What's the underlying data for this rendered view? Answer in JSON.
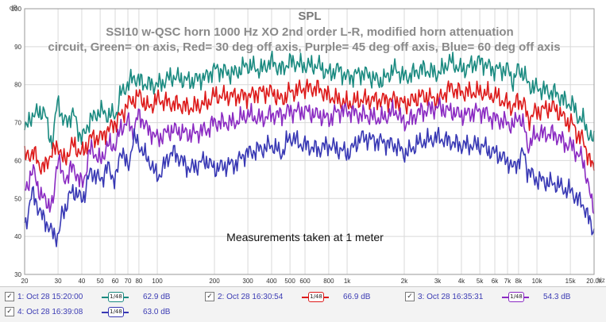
{
  "chart_data": {
    "type": "line",
    "title": "SPL",
    "subtitle_lines": [
      "SSI10 w-QSC horn 1000 Hz XO 2nd order L-R, modified horn attenuation",
      "circuit, Green= on axis, Red= 30 deg off axis, Purple= 45 deg off axis, Blue= 60 deg off axis"
    ],
    "ylabel": "dB",
    "xlabel": "Hz",
    "x_scale": "log",
    "xlim": [
      20,
      20000
    ],
    "ylim": [
      30,
      100
    ],
    "y_ticks": [
      30,
      40,
      50,
      60,
      70,
      80,
      90,
      100
    ],
    "x_ticks": [
      {
        "v": 20,
        "label": "20"
      },
      {
        "v": 30,
        "label": "30"
      },
      {
        "v": 40,
        "label": "40"
      },
      {
        "v": 50,
        "label": "50"
      },
      {
        "v": 60,
        "label": "60"
      },
      {
        "v": 70,
        "label": "70"
      },
      {
        "v": 80,
        "label": "80"
      },
      {
        "v": 100,
        "label": "100"
      },
      {
        "v": 200,
        "label": "200"
      },
      {
        "v": 300,
        "label": "300"
      },
      {
        "v": 400,
        "label": "400"
      },
      {
        "v": 500,
        "label": "500"
      },
      {
        "v": 600,
        "label": "600"
      },
      {
        "v": 800,
        "label": "800"
      },
      {
        "v": 1000,
        "label": "1k"
      },
      {
        "v": 2000,
        "label": "2k"
      },
      {
        "v": 3000,
        "label": "3k"
      },
      {
        "v": 4000,
        "label": "4k"
      },
      {
        "v": 5000,
        "label": "5k"
      },
      {
        "v": 6000,
        "label": "6k"
      },
      {
        "v": 7000,
        "label": "7k"
      },
      {
        "v": 8000,
        "label": "8k"
      },
      {
        "v": 10000,
        "label": "10k"
      },
      {
        "v": 15000,
        "label": "15k"
      },
      {
        "v": 20000,
        "label": "20.0k"
      }
    ],
    "grid": true,
    "annotation": "Measurements taken at 1 meter",
    "x": [
      20,
      22,
      25,
      28,
      30,
      32,
      36,
      40,
      45,
      50,
      55,
      60,
      65,
      70,
      75,
      80,
      90,
      100,
      120,
      150,
      180,
      200,
      250,
      300,
      350,
      400,
      450,
      500,
      600,
      700,
      800,
      900,
      1000,
      1200,
      1500,
      1800,
      2000,
      2500,
      3000,
      3500,
      4000,
      5000,
      6000,
      7000,
      7500,
      8000,
      8500,
      9000,
      10000,
      12000,
      15000,
      17000,
      20000
    ],
    "series": [
      {
        "color": "#1a8a80",
        "values": [
          68,
          72,
          73,
          65,
          76,
          70,
          72,
          66,
          71,
          73,
          72,
          72,
          78,
          80,
          82,
          81,
          80,
          80,
          82,
          81,
          82,
          84,
          83,
          85,
          84,
          86,
          84,
          86,
          85,
          85,
          83,
          84,
          82,
          83,
          81,
          84,
          82,
          84,
          83,
          86,
          84,
          86,
          84,
          84,
          81,
          84,
          83,
          80,
          79,
          78,
          75,
          71,
          65
        ]
      },
      {
        "color": "#dd1a1a",
        "values": [
          61,
          62,
          58,
          62,
          64,
          60,
          64,
          62,
          66,
          66,
          68,
          70,
          72,
          75,
          76,
          77,
          74,
          76,
          75,
          74,
          75,
          77,
          77,
          77,
          78,
          78,
          76,
          78,
          79,
          79,
          77,
          76,
          75,
          76,
          76,
          76,
          75,
          77,
          76,
          79,
          78,
          78,
          77,
          75,
          74,
          76,
          75,
          71,
          73,
          74,
          70,
          66,
          58
        ]
      },
      {
        "color": "#8a2ac2",
        "values": [
          52,
          57,
          50,
          48,
          61,
          55,
          58,
          54,
          63,
          60,
          64,
          64,
          69,
          70,
          68,
          72,
          68,
          66,
          68,
          67,
          68,
          70,
          70,
          72,
          71,
          72,
          72,
          73,
          73,
          72,
          71,
          73,
          73,
          72,
          71,
          73,
          70,
          73,
          74,
          73,
          72,
          73,
          71,
          70,
          69,
          72,
          69,
          64,
          67,
          67,
          64,
          61,
          48
        ]
      },
      {
        "color": "#3838b4",
        "values": [
          43,
          51,
          45,
          41,
          40,
          47,
          52,
          50,
          57,
          55,
          58,
          55,
          63,
          58,
          66,
          64,
          60,
          56,
          62,
          58,
          60,
          58,
          59,
          62,
          63,
          64,
          62,
          66,
          64,
          63,
          64,
          63,
          62,
          66,
          65,
          64,
          62,
          65,
          66,
          65,
          64,
          64,
          62,
          60,
          58,
          60,
          62,
          57,
          55,
          54,
          52,
          49,
          42
        ]
      }
    ]
  },
  "legend": [
    {
      "checked": "✓",
      "label": "1: Oct 28 15:20:00",
      "swatch_text": "1/48",
      "value": "62.9 dB",
      "color": "#1a8a80"
    },
    {
      "checked": "✓",
      "label": "2: Oct 28 16:30:54",
      "swatch_text": "1/48",
      "value": "66.9 dB",
      "color": "#dd1a1a"
    },
    {
      "checked": "✓",
      "label": "3: Oct 28 16:35:31",
      "swatch_text": "1/48",
      "value": "54.3 dB",
      "color": "#8a2ac2"
    },
    {
      "checked": "✓",
      "label": "4: Oct 28 16:39:08",
      "swatch_text": "1/48",
      "value": "63.0 dB",
      "color": "#3838b4"
    }
  ]
}
